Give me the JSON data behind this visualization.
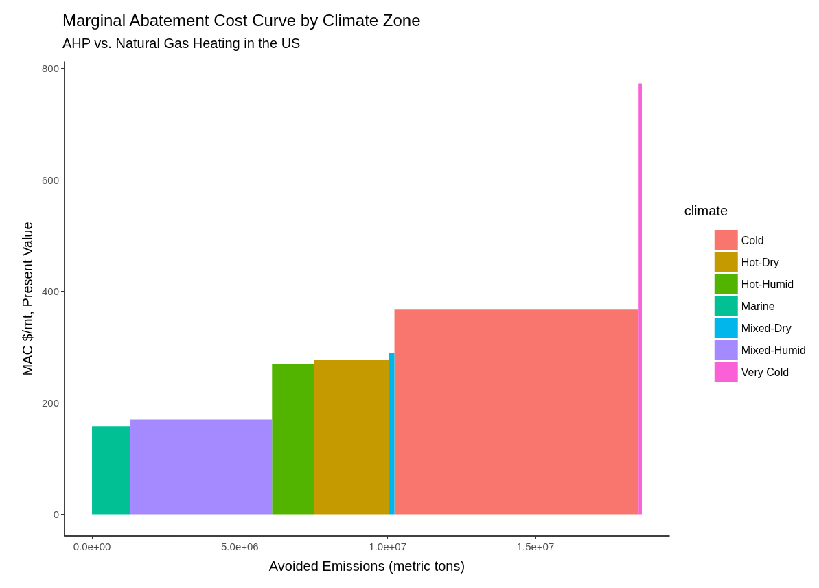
{
  "chart_data": {
    "type": "area",
    "title": "Marginal Abatement Cost Curve by Climate Zone",
    "subtitle": "AHP vs. Natural Gas Heating in the US",
    "xlabel": "Avoided Emissions (metric tons)",
    "ylabel": "MAC $/mt, Present Value",
    "legend_title": "climate",
    "series": [
      {
        "name": "Cold",
        "color": "#f8766d",
        "x": [
          10230000,
          18490000
        ],
        "values": [
          367,
          367
        ]
      },
      {
        "name": "Hot-Dry",
        "color": "#c49a00",
        "x": [
          7500000,
          10050000
        ],
        "values": [
          277,
          277
        ]
      },
      {
        "name": "Hot-Humid",
        "color": "#53b400",
        "x": [
          6090000,
          7500000
        ],
        "values": [
          269,
          269
        ]
      },
      {
        "name": "Marine",
        "color": "#00c094",
        "x": [
          0,
          1300000
        ],
        "values": [
          158,
          158
        ]
      },
      {
        "name": "Mixed-Dry",
        "color": "#00b6eb",
        "x": [
          10050000,
          10230000
        ],
        "values": [
          290,
          290
        ]
      },
      {
        "name": "Mixed-Humid",
        "color": "#a58aff",
        "x": [
          1300000,
          6090000
        ],
        "values": [
          170,
          170
        ]
      },
      {
        "name": "Very Cold",
        "color": "#fb61d7",
        "x": [
          18490000,
          18600000
        ],
        "values": [
          773,
          773
        ]
      }
    ],
    "xlim": [
      -930000,
      19530000
    ],
    "xticks": [
      {
        "value": 0,
        "label": "0.0e+00"
      },
      {
        "value": 5000000,
        "label": "5.0e+06"
      },
      {
        "value": 10000000,
        "label": "1.0e+07"
      },
      {
        "value": 15000000,
        "label": "1.5e+07"
      }
    ],
    "ylim": [
      -38.7,
      811.7
    ],
    "yticks": [
      0,
      200,
      400,
      600,
      800
    ],
    "grid": false,
    "legend": "right"
  }
}
